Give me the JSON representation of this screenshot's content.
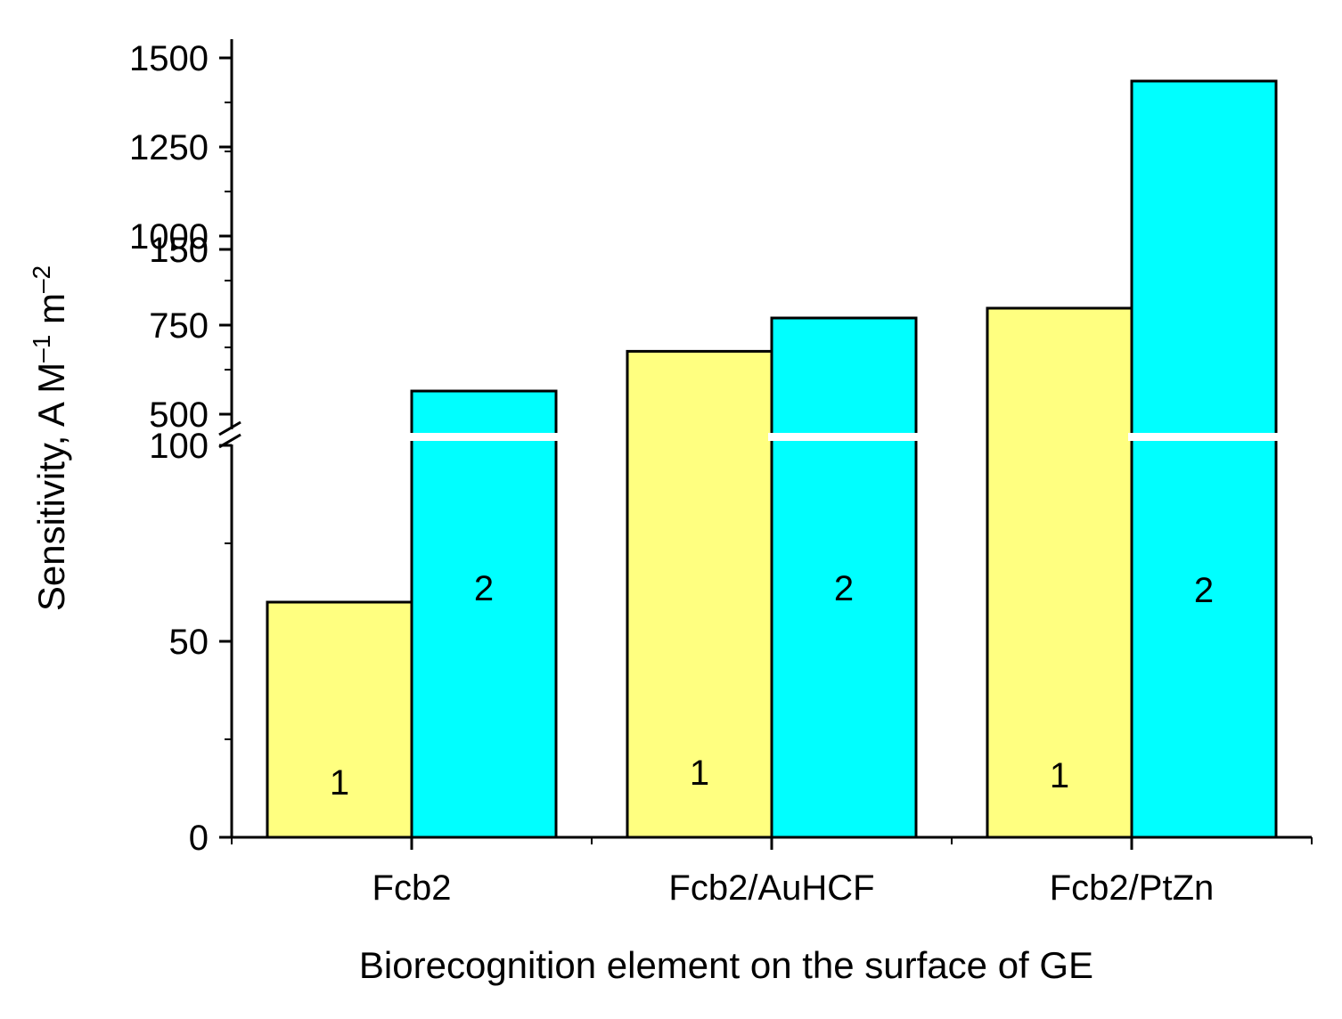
{
  "chart_data": {
    "type": "bar",
    "title": "",
    "xlabel": "Biorecognition element on the surface of GE",
    "ylabel": {
      "main": "Sensitivity, A M",
      "sup1": "–1",
      "unit2": " m",
      "sup2": "–2"
    },
    "categories": [
      "Fcb2",
      "Fcb2/AuHCF",
      "Fcb2/PtZn"
    ],
    "series": [
      {
        "name": "1",
        "color": "#ffff80",
        "values": [
          60,
          124,
          135
        ]
      },
      {
        "name": "2",
        "color": "#00ffff",
        "values": [
          565,
          770,
          1435
        ]
      }
    ],
    "y_axis_break": {
      "lower_range": [
        0,
        200
      ],
      "upper_range": [
        450,
        1550
      ]
    },
    "lower_ticks": [
      "0",
      "50",
      "100",
      "150"
    ],
    "upper_ticks": [
      "500",
      "750",
      "1000",
      "1250",
      "1500"
    ],
    "bar_labels": [
      "1",
      "2"
    ],
    "grid": false,
    "legend": "none (series numbered inside bars)"
  }
}
